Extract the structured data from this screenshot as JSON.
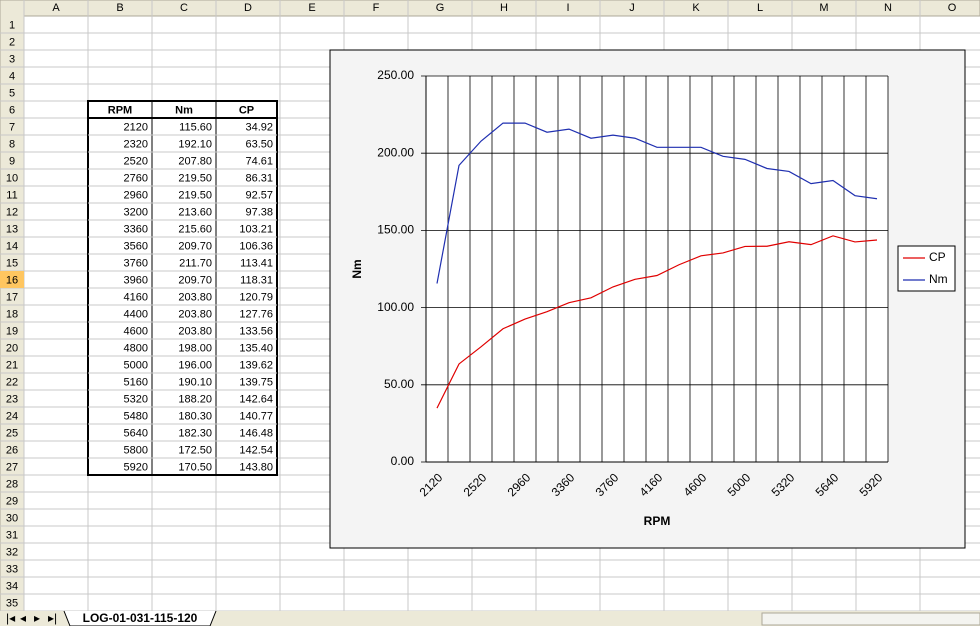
{
  "sheet": {
    "columns": [
      "A",
      "B",
      "C",
      "D",
      "E",
      "F",
      "G",
      "H",
      "I",
      "J",
      "K",
      "L",
      "M",
      "N",
      "O"
    ],
    "rows": [
      1,
      2,
      3,
      4,
      5,
      6,
      7,
      8,
      9,
      10,
      11,
      12,
      13,
      14,
      15,
      16,
      17,
      18,
      19,
      20,
      21,
      22,
      23,
      24,
      25,
      26,
      27,
      28,
      29,
      30,
      31,
      32,
      33,
      34,
      35
    ],
    "selected_row": 16,
    "tab": "LOG-01-031-115-120"
  },
  "table": {
    "header": [
      "RPM",
      "Nm",
      "CP"
    ],
    "rows": [
      [
        "2120",
        "115.60",
        "34.92"
      ],
      [
        "2320",
        "192.10",
        "63.50"
      ],
      [
        "2520",
        "207.80",
        "74.61"
      ],
      [
        "2760",
        "219.50",
        "86.31"
      ],
      [
        "2960",
        "219.50",
        "92.57"
      ],
      [
        "3200",
        "213.60",
        "97.38"
      ],
      [
        "3360",
        "215.60",
        "103.21"
      ],
      [
        "3560",
        "209.70",
        "106.36"
      ],
      [
        "3760",
        "211.70",
        "113.41"
      ],
      [
        "3960",
        "209.70",
        "118.31"
      ],
      [
        "4160",
        "203.80",
        "120.79"
      ],
      [
        "4400",
        "203.80",
        "127.76"
      ],
      [
        "4600",
        "203.80",
        "133.56"
      ],
      [
        "4800",
        "198.00",
        "135.40"
      ],
      [
        "5000",
        "196.00",
        "139.62"
      ],
      [
        "5160",
        "190.10",
        "139.75"
      ],
      [
        "5320",
        "188.20",
        "142.64"
      ],
      [
        "5480",
        "180.30",
        "140.77"
      ],
      [
        "5640",
        "182.30",
        "146.48"
      ],
      [
        "5800",
        "172.50",
        "142.54"
      ],
      [
        "5920",
        "170.50",
        "143.80"
      ]
    ]
  },
  "chart_data": {
    "type": "line",
    "xlabel": "RPM",
    "ylabel": "Nm",
    "categories": [
      2120,
      null,
      2520,
      null,
      2960,
      null,
      3360,
      null,
      3760,
      null,
      4160,
      null,
      4600,
      null,
      5000,
      null,
      5320,
      null,
      5640,
      null,
      5920
    ],
    "series": [
      {
        "name": "CP",
        "color": "#e00000",
        "values": [
          34.92,
          63.5,
          74.61,
          86.31,
          92.57,
          97.38,
          103.21,
          106.36,
          113.41,
          118.31,
          120.79,
          127.76,
          133.56,
          135.4,
          139.62,
          139.75,
          142.64,
          140.77,
          146.48,
          142.54,
          143.8
        ]
      },
      {
        "name": "Nm",
        "color": "#1f2fb0",
        "values": [
          115.6,
          192.1,
          207.8,
          219.5,
          219.5,
          213.6,
          215.6,
          209.7,
          211.7,
          209.7,
          203.8,
          203.8,
          203.8,
          198,
          196,
          190.1,
          188.2,
          180.3,
          182.3,
          172.5,
          170.5
        ]
      }
    ],
    "ylim": [
      0,
      250
    ],
    "yticks": [
      {
        "value": 0,
        "label": "0.00"
      },
      {
        "value": 50,
        "label": "50.00"
      },
      {
        "value": 100,
        "label": "100.00"
      },
      {
        "value": 150,
        "label": "150.00"
      },
      {
        "value": 200,
        "label": "200.00"
      },
      {
        "value": 250,
        "label": "250.00"
      }
    ],
    "grid": true,
    "legend": "right"
  }
}
